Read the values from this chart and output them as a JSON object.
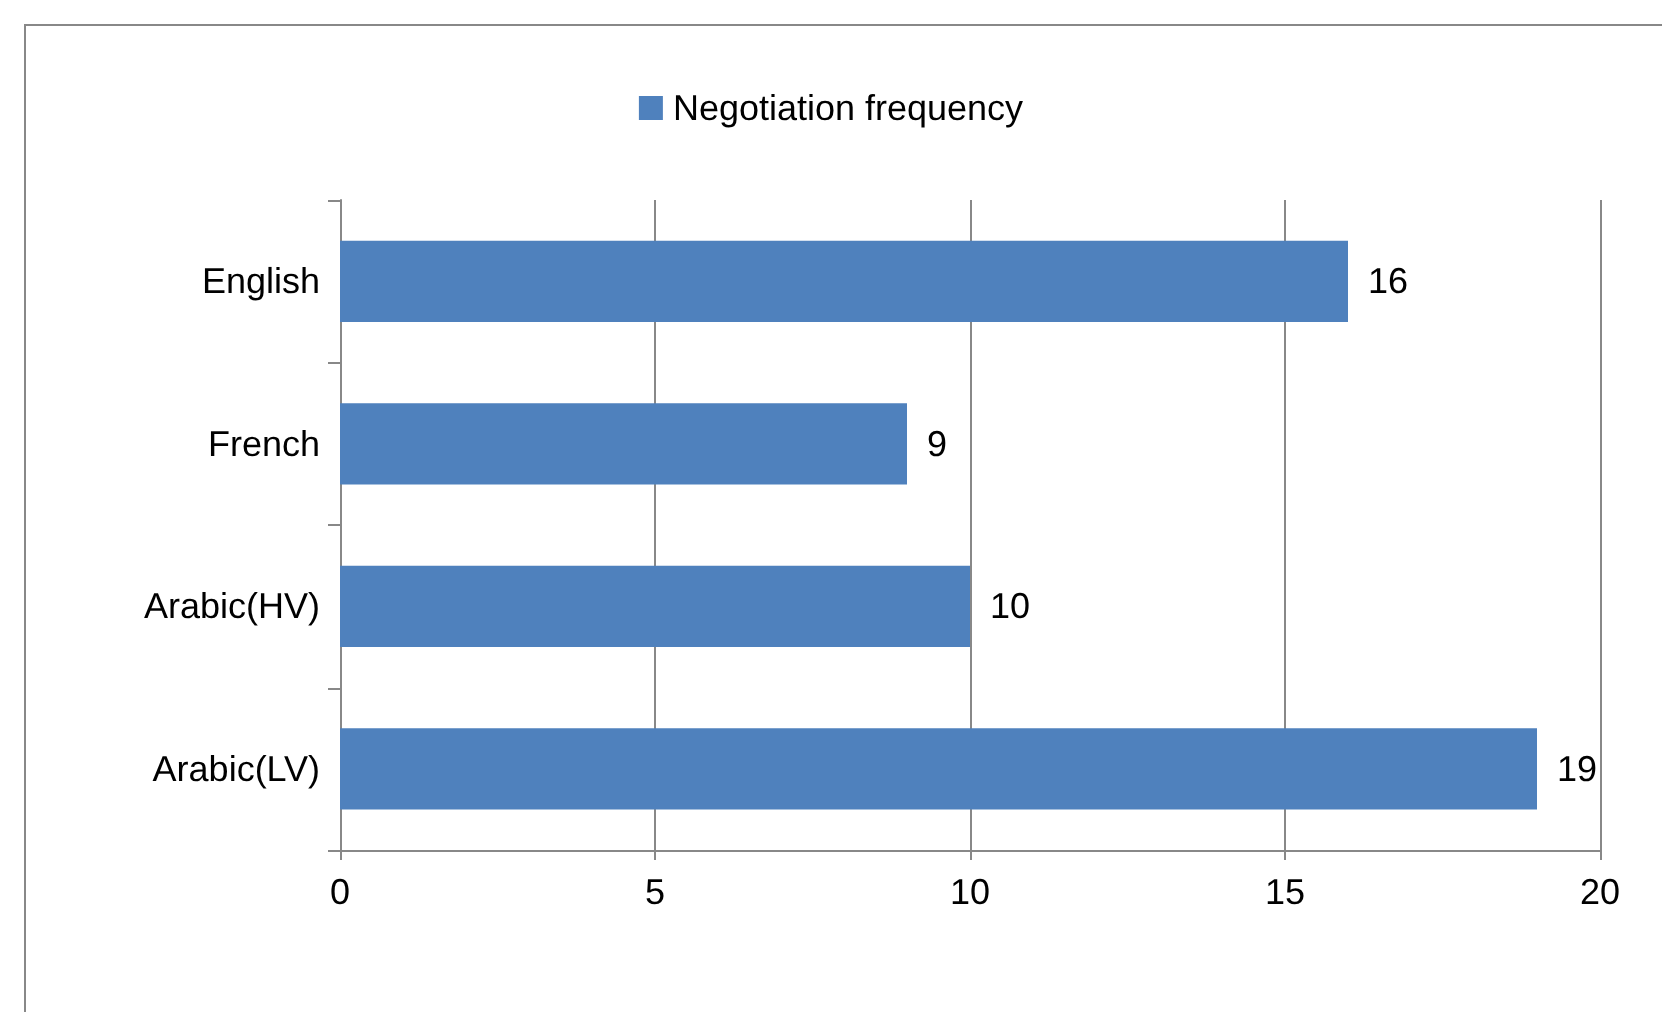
{
  "chart_data": {
    "type": "bar",
    "orientation": "horizontal",
    "categories": [
      "English",
      "French",
      "Arabic(HV)",
      "Arabic(LV)"
    ],
    "series": [
      {
        "name": "Negotiation frequency",
        "color": "#4f81bd",
        "values": [
          16,
          9,
          10,
          19
        ]
      }
    ],
    "xlim": [
      0,
      20
    ],
    "xticks": [
      0,
      5,
      10,
      15,
      20
    ],
    "grid": "x",
    "legend": "top",
    "data_labels": true
  }
}
